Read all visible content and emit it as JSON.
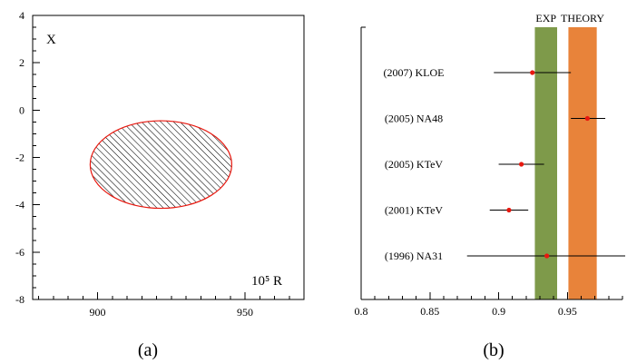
{
  "chart_data": [
    {
      "type": "contour",
      "panel_label": "(a)",
      "xlabel": "10⁵ R",
      "ylabel": "X",
      "xlim": [
        878,
        970
      ],
      "ylim": [
        -8,
        4
      ],
      "x_ticks": [
        900,
        950
      ],
      "y_ticks": [
        4,
        2,
        0,
        -2,
        -4,
        -6,
        -8
      ],
      "x_minor_step": 5,
      "y_minor_step": 0.5,
      "ellipse": {
        "center_x": 921.5,
        "center_y": -2.3,
        "semi_axis_x": 24,
        "semi_axis_y": 1.85
      },
      "fill": "hatched",
      "outline_color": "#e8180f",
      "hatch_color": "#000000"
    },
    {
      "type": "scatter",
      "panel_label": "(b)",
      "xlim": [
        0.8,
        0.99
      ],
      "x_ticks": [
        0.8,
        0.85,
        0.9,
        0.95
      ],
      "x_minor_step": 0.01,
      "bands": [
        {
          "name": "EXP",
          "x_range": [
            0.9263,
            0.9425
          ],
          "color": "#7e9a4a"
        },
        {
          "name": "THEORY",
          "x_range": [
            0.9507,
            0.9713
          ],
          "color": "#e8833a"
        }
      ],
      "points": [
        {
          "label": "(2007) KLOE",
          "value": 0.9245,
          "err_low": 0.8965,
          "err_high": 0.9525
        },
        {
          "label": "(2005) NA48",
          "value": 0.9645,
          "err_low": 0.9525,
          "err_high": 0.9775
        },
        {
          "label": "(2005) KTeV",
          "value": 0.9165,
          "err_low": 0.9,
          "err_high": 0.933
        },
        {
          "label": "(2001) KTeV",
          "value": 0.9075,
          "err_low": 0.8935,
          "err_high": 0.9215
        },
        {
          "label": "(1996) NA31",
          "value": 0.935,
          "err_low": 0.877,
          "err_high": 0.992
        }
      ],
      "marker_color": "#e8180f"
    }
  ]
}
